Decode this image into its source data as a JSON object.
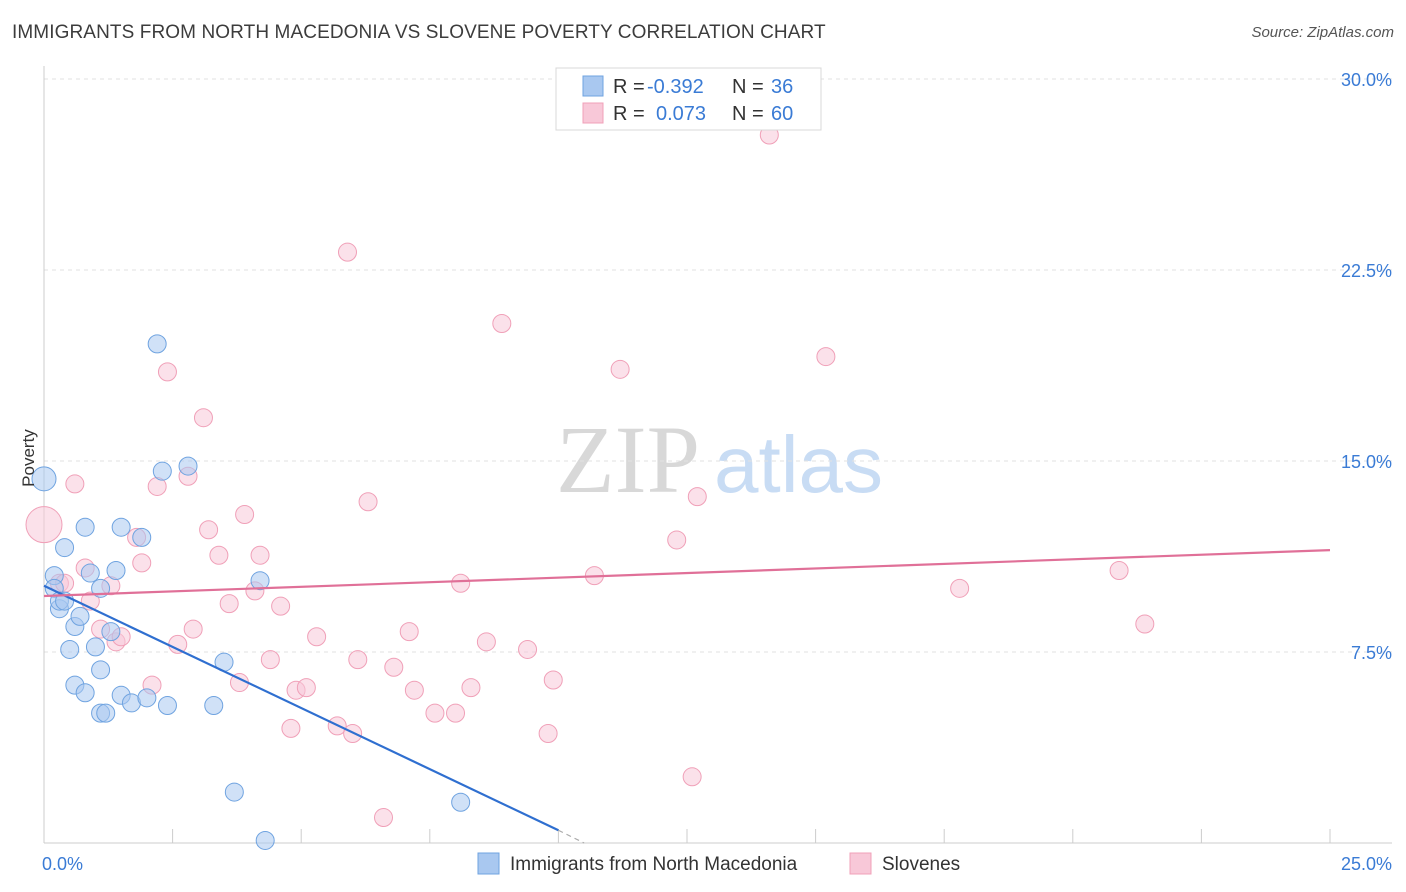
{
  "header": {
    "title": "IMMIGRANTS FROM NORTH MACEDONIA VS SLOVENE POVERTY CORRELATION CHART",
    "source": "Source: ZipAtlas.com"
  },
  "watermark": {
    "zip": "ZIP",
    "atlas": "atlas"
  },
  "chart_data": {
    "type": "scatter",
    "ylabel": "Poverty",
    "xlim": [
      0,
      25
    ],
    "ylim": [
      0,
      30
    ],
    "x_tick_labels": [
      "0.0%",
      "25.0%"
    ],
    "y_ticks": [
      7.5,
      15.0,
      22.5,
      30.0
    ],
    "y_tick_labels": [
      "7.5%",
      "15.0%",
      "22.5%",
      "30.0%"
    ],
    "legend": {
      "rows": [
        {
          "r_label": "R =",
          "r_value": "-0.392",
          "n_label": "N =",
          "n_value": "36"
        },
        {
          "r_label": "R =",
          "r_value": "0.073",
          "n_label": "N =",
          "n_value": "60"
        }
      ]
    },
    "series": [
      {
        "name": "Immigrants from North Macedonia",
        "color": "#6fa3e0",
        "fill": "#a9c8f0",
        "line_color": "#2f6fd0",
        "trend": {
          "x0": 0,
          "y0": 10.1,
          "x1": 10,
          "y1": 0.5,
          "dash_x1": 10.5,
          "dash_y1": 0.0
        },
        "points": [
          [
            0.0,
            14.3,
            12
          ],
          [
            0.2,
            10.5,
            9
          ],
          [
            0.2,
            10.0,
            9
          ],
          [
            0.3,
            9.2,
            9
          ],
          [
            0.3,
            9.5,
            9
          ],
          [
            0.4,
            11.6,
            9
          ],
          [
            0.4,
            9.5,
            9
          ],
          [
            0.5,
            7.6,
            9
          ],
          [
            0.6,
            6.2,
            9
          ],
          [
            0.6,
            8.5,
            9
          ],
          [
            0.7,
            8.9,
            9
          ],
          [
            0.8,
            12.4,
            9
          ],
          [
            0.8,
            5.9,
            9
          ],
          [
            0.9,
            10.6,
            9
          ],
          [
            1.0,
            7.7,
            9
          ],
          [
            1.1,
            6.8,
            9
          ],
          [
            1.1,
            5.1,
            9
          ],
          [
            1.1,
            10.0,
            9
          ],
          [
            1.2,
            5.1,
            9
          ],
          [
            1.3,
            8.3,
            9
          ],
          [
            1.4,
            10.7,
            9
          ],
          [
            1.5,
            12.4,
            9
          ],
          [
            1.5,
            5.8,
            9
          ],
          [
            1.7,
            5.5,
            9
          ],
          [
            1.9,
            12.0,
            9
          ],
          [
            2.0,
            5.7,
            9
          ],
          [
            2.2,
            19.6,
            9
          ],
          [
            2.3,
            14.6,
            9
          ],
          [
            2.4,
            5.4,
            9
          ],
          [
            2.8,
            14.8,
            9
          ],
          [
            3.3,
            5.4,
            9
          ],
          [
            3.5,
            7.1,
            9
          ],
          [
            3.7,
            2.0,
            9
          ],
          [
            4.2,
            10.3,
            9
          ],
          [
            4.3,
            0.1,
            9
          ],
          [
            8.1,
            1.6,
            9
          ]
        ]
      },
      {
        "name": "Slovenes",
        "color": "#f0a0b8",
        "fill": "#f8c8d8",
        "line_color": "#e07098",
        "trend": {
          "x0": 0,
          "y0": 9.7,
          "x1": 25,
          "y1": 11.5
        },
        "points": [
          [
            0.0,
            12.5,
            18
          ],
          [
            0.3,
            10.2,
            9
          ],
          [
            0.4,
            10.2,
            9
          ],
          [
            0.6,
            14.1,
            9
          ],
          [
            0.8,
            10.8,
            9
          ],
          [
            0.9,
            9.5,
            9
          ],
          [
            1.1,
            8.4,
            9
          ],
          [
            1.3,
            10.1,
            9
          ],
          [
            1.4,
            7.9,
            9
          ],
          [
            1.5,
            8.1,
            9
          ],
          [
            1.8,
            12.0,
            9
          ],
          [
            1.9,
            11.0,
            9
          ],
          [
            2.1,
            6.2,
            9
          ],
          [
            2.2,
            14.0,
            9
          ],
          [
            2.4,
            18.5,
            9
          ],
          [
            2.6,
            7.8,
            9
          ],
          [
            2.9,
            8.4,
            9
          ],
          [
            2.8,
            14.4,
            9
          ],
          [
            3.1,
            16.7,
            9
          ],
          [
            3.2,
            12.3,
            9
          ],
          [
            3.4,
            11.3,
            9
          ],
          [
            3.6,
            9.4,
            9
          ],
          [
            3.8,
            6.3,
            9
          ],
          [
            3.9,
            12.9,
            9
          ],
          [
            4.1,
            9.9,
            9
          ],
          [
            4.2,
            11.3,
            9
          ],
          [
            4.4,
            7.2,
            9
          ],
          [
            4.6,
            9.3,
            9
          ],
          [
            4.8,
            4.5,
            9
          ],
          [
            4.9,
            6.0,
            9
          ],
          [
            5.1,
            6.1,
            9
          ],
          [
            5.3,
            8.1,
            9
          ],
          [
            5.7,
            4.6,
            9
          ],
          [
            6.0,
            4.3,
            9
          ],
          [
            5.9,
            23.2,
            9
          ],
          [
            6.1,
            7.2,
            9
          ],
          [
            6.3,
            13.4,
            9
          ],
          [
            6.6,
            1.0,
            9
          ],
          [
            6.8,
            6.9,
            9
          ],
          [
            7.1,
            8.3,
            9
          ],
          [
            7.2,
            6.0,
            9
          ],
          [
            7.6,
            5.1,
            9
          ],
          [
            8.0,
            5.1,
            9
          ],
          [
            8.1,
            10.2,
            9
          ],
          [
            8.3,
            6.1,
            9
          ],
          [
            8.6,
            7.9,
            9
          ],
          [
            8.9,
            20.4,
            9
          ],
          [
            9.4,
            7.6,
            9
          ],
          [
            9.8,
            4.3,
            9
          ],
          [
            9.9,
            6.4,
            9
          ],
          [
            10.7,
            10.5,
            9
          ],
          [
            11.2,
            18.6,
            9
          ],
          [
            12.3,
            11.9,
            9
          ],
          [
            12.6,
            2.6,
            9
          ],
          [
            12.7,
            13.6,
            9
          ],
          [
            14.1,
            27.8,
            9
          ],
          [
            15.2,
            19.1,
            9
          ],
          [
            17.8,
            10.0,
            9
          ],
          [
            20.9,
            10.7,
            9
          ],
          [
            21.4,
            8.6,
            9
          ]
        ]
      }
    ]
  }
}
